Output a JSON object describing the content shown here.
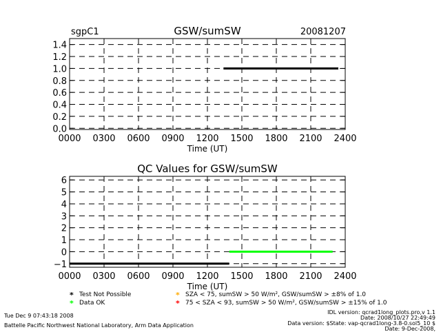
{
  "header": {
    "site": "sgpC1",
    "date": "20081207"
  },
  "chart_data": [
    {
      "type": "line",
      "title": "GSW/sumSW",
      "xlabel": "Time (UT)",
      "ylabel": "",
      "xlim": [
        0,
        2400
      ],
      "ylim": [
        -0.02,
        1.5
      ],
      "xticks": [
        "0000",
        "0300",
        "0600",
        "0900",
        "1200",
        "1500",
        "1800",
        "2100",
        "2400"
      ],
      "yticks": [
        "0.0",
        "0.2",
        "0.4",
        "0.6",
        "0.8",
        "1.0",
        "1.2",
        "1.4"
      ],
      "grid": true,
      "series": [
        {
          "color": "#000000",
          "x": [
            1340,
            2340
          ],
          "y": [
            1.0,
            1.0
          ]
        }
      ]
    },
    {
      "type": "line",
      "title": "QC Values for GSW/sumSW",
      "xlabel": "Time (UT)",
      "ylabel": "",
      "xlim": [
        0,
        2400
      ],
      "ylim": [
        -1.3,
        6.3
      ],
      "xticks": [
        "0000",
        "0300",
        "0600",
        "0900",
        "1200",
        "1500",
        "1800",
        "2100",
        "2400"
      ],
      "yticks": [
        "−1",
        "0",
        "1",
        "2",
        "3",
        "4",
        "5",
        "6"
      ],
      "grid": true,
      "series": [
        {
          "color": "#000000",
          "x": [
            0,
            1390
          ],
          "y": [
            -1,
            -1
          ]
        },
        {
          "color": "#00ff00",
          "x": [
            1390,
            2290
          ],
          "y": [
            0,
            0
          ]
        }
      ]
    }
  ],
  "legend": {
    "items": [
      {
        "symbol": "*",
        "color": "#000000",
        "label": "Test Not Possible"
      },
      {
        "symbol": "*",
        "color": "#ffaa00",
        "label": "SZA < 75, sumSW > 50 W/m², GSW/sumSW > ±8% of 1.0"
      },
      {
        "symbol": "*",
        "color": "#00ff00",
        "label": "Data OK"
      },
      {
        "symbol": "*",
        "color": "#ff0000",
        "label": "75 < SZA < 93, sumSW > 50 W/m², GSW/sumSW > ±15% of 1.0"
      }
    ]
  },
  "footer": {
    "timestamp": "Tue Dec  9 07:43:18 2008",
    "lab": "Battelle Pacific Northwest National Laboratory, Arm Data Application",
    "idl_version": "IDL version: qcrad1long_plots.pro,v 1.1",
    "code_date": "Date: 2008/10/27 22:49:49",
    "data_version": "Data version: $State: vap-qcrad1long-3.8-0.sol5_10 $",
    "data_date": "Date: 9-Dec-2008,"
  }
}
